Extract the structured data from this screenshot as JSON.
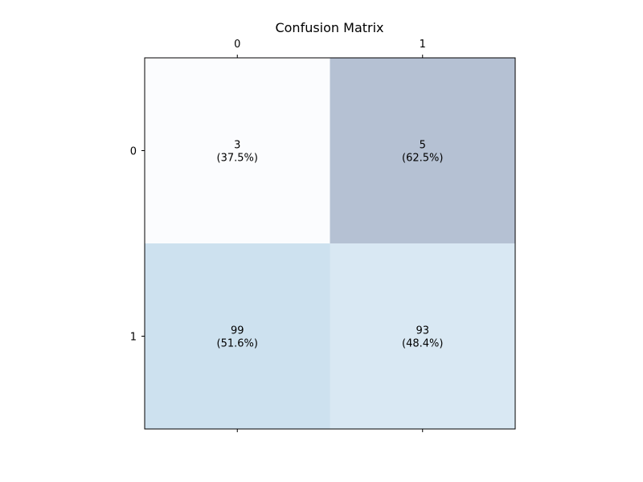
{
  "chart_data": {
    "type": "heatmap",
    "title": "Confusion Matrix",
    "x_categories": [
      "0",
      "1"
    ],
    "y_categories": [
      "0",
      "1"
    ],
    "cells": [
      {
        "row": 0,
        "col": 0,
        "count": 3,
        "percent_label": "(37.5%)",
        "color": "#fbfcfe"
      },
      {
        "row": 0,
        "col": 1,
        "count": 5,
        "percent_label": "(62.5%)",
        "color": "#b5c1d3"
      },
      {
        "row": 1,
        "col": 0,
        "count": 99,
        "percent_label": "(51.6%)",
        "color": "#cde1ef"
      },
      {
        "row": 1,
        "col": 1,
        "count": 93,
        "percent_label": "(48.4%)",
        "color": "#d9e8f3"
      }
    ],
    "xlabel": "",
    "ylabel": "",
    "x_tick_position": "top-and-bottom",
    "grid": false,
    "legend": "none"
  }
}
